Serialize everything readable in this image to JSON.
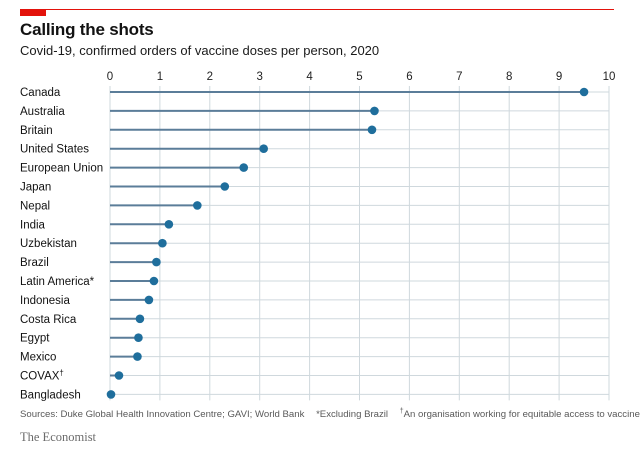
{
  "chart_data": {
    "type": "lollipop",
    "title": "Calling the shots",
    "subtitle": "Covid-19, confirmed orders of vaccine doses per person, 2020",
    "xlabel": "",
    "ylabel": "",
    "xlim": [
      0,
      10
    ],
    "xticks": [
      "0",
      "1",
      "2",
      "3",
      "4",
      "5",
      "6",
      "7",
      "8",
      "9",
      "10"
    ],
    "grid": true,
    "categories": [
      "Canada",
      "Australia",
      "Britain",
      "United States",
      "European Union",
      "Japan",
      "Nepal",
      "India",
      "Uzbekistan",
      "Brazil",
      "Latin America*",
      "Indonesia",
      "Costa Rica",
      "Egypt",
      "Mexico",
      "COVAX",
      "Bangladesh"
    ],
    "category_marks": [
      "",
      "",
      "",
      "",
      "",
      "",
      "",
      "",
      "",
      "",
      "",
      "",
      "",
      "",
      "",
      "†",
      ""
    ],
    "values": [
      9.5,
      5.3,
      5.25,
      3.08,
      2.68,
      2.3,
      1.75,
      1.18,
      1.05,
      0.93,
      0.88,
      0.78,
      0.6,
      0.57,
      0.55,
      0.18,
      0.02
    ],
    "colors": {
      "accent": "#e3120b",
      "line": "#5b7d99",
      "dot": "#1f6e9c",
      "grid": "#cfd8dd",
      "text": "#121212",
      "note": "#595959"
    }
  },
  "notes": {
    "sources": "Sources: Duke Global Health Innovation Centre; GAVI; World Bank",
    "footnote1": "*Excluding Brazil",
    "footnote2_mark": "†",
    "footnote2": "An organisation working for equitable access to vaccines"
  },
  "brand": "The Economist"
}
